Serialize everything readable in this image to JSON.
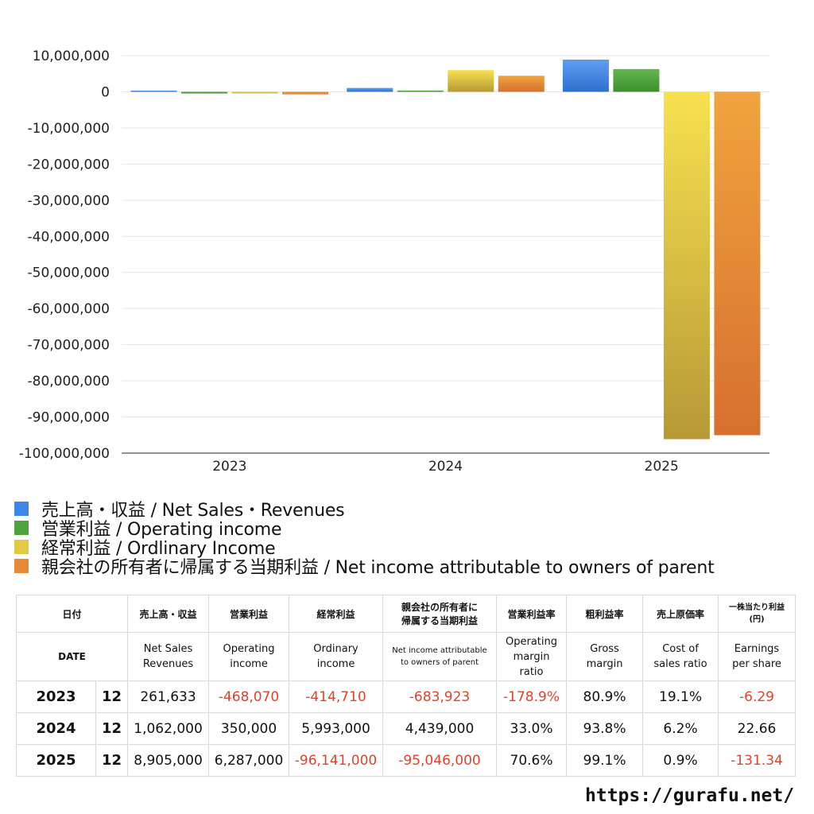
{
  "chart_data": {
    "type": "bar",
    "categories": [
      "2023",
      "2024",
      "2025"
    ],
    "series": [
      {
        "name": "売上高・収益 / Net Sales・Revenues",
        "values": [
          261633,
          1062000,
          8905000
        ]
      },
      {
        "name": "営業利益 / Operating income",
        "values": [
          -468070,
          350000,
          6287000
        ]
      },
      {
        "name": "経常利益 / Ordlinary Income",
        "values": [
          -414710,
          5993000,
          -96141000
        ]
      },
      {
        "name": "親会社の所有者に帰属する当期利益 / Net income attributable to owners of parent",
        "values": [
          -683923,
          4439000,
          -95046000
        ]
      }
    ],
    "ylim": [
      -100000000,
      10000000
    ],
    "yticks": [
      "10,000,000",
      "0",
      "-10,000,000",
      "-20,000,000",
      "-30,000,000",
      "-40,000,000",
      "-50,000,000",
      "-60,000,000",
      "-70,000,000",
      "-80,000,000",
      "-90,000,000",
      "-100,000,000"
    ],
    "grid": true,
    "legend": "bottom",
    "colors": {
      "blue": [
        "#5f9ff0",
        "#2e6fd0"
      ],
      "green": [
        "#63b64e",
        "#3d8f2f"
      ],
      "yellow": [
        "#f7e14f",
        "#b59a36"
      ],
      "orange": [
        "#f0a43e",
        "#d76f2e"
      ]
    }
  },
  "legend": [
    {
      "label": "売上高・収益 / Net Sales・Revenues",
      "color": "#3f86e6"
    },
    {
      "label": "営業利益 / Operating income",
      "color": "#4ea33f"
    },
    {
      "label": "経常利益 / Ordlinary Income",
      "color": "#e3c944"
    },
    {
      "label": "親会社の所有者に帰属する当期利益 / Net income attributable to owners of parent",
      "color": "#e88a35"
    }
  ],
  "table": {
    "header_jp": {
      "date": "日付",
      "sales": "売上高・収益",
      "op": "営業利益",
      "ord": "経常利益",
      "net_l1": "親会社の所有者に",
      "net_l2": "帰属する当期利益",
      "opm": "営業利益率",
      "gm": "粗利益率",
      "cost": "売上原価率",
      "eps_l1": "一株当たり利益",
      "eps_l2": "(円)"
    },
    "header_en": {
      "date": "DATE",
      "sales_l1": "Net Sales",
      "sales_l2": "Revenues",
      "op_l1": "Operating",
      "op_l2": "income",
      "ord_l1": "Ordinary",
      "ord_l2": "income",
      "net_l1": "Net income attributable",
      "net_l2": "to owners of parent",
      "opm_l1": "Operating",
      "opm_l2": "margin",
      "opm_l3": "ratio",
      "gm_l1": "Gross",
      "gm_l2": "margin",
      "cost_l1": "Cost of",
      "cost_l2": "sales ratio",
      "eps_l1": "Earnings",
      "eps_l2": "per share"
    },
    "rows": [
      {
        "year": "2023",
        "month": "12",
        "sales": "261,633",
        "op": "-468,070",
        "ord": "-414,710",
        "net": "-683,923",
        "opm": "-178.9%",
        "gm": "80.9%",
        "cost": "19.1%",
        "eps": "-6.29"
      },
      {
        "year": "2024",
        "month": "12",
        "sales": "1,062,000",
        "op": "350,000",
        "ord": "5,993,000",
        "net": "4,439,000",
        "opm": "33.0%",
        "gm": "93.8%",
        "cost": "6.2%",
        "eps": "22.66"
      },
      {
        "year": "2025",
        "month": "12",
        "sales": "8,905,000",
        "op": "6,287,000",
        "ord": "-96,141,000",
        "net": "-95,046,000",
        "opm": "70.6%",
        "gm": "99.1%",
        "cost": "0.9%",
        "eps": "-131.34"
      }
    ]
  },
  "footer_url": "https://gurafu.net/"
}
